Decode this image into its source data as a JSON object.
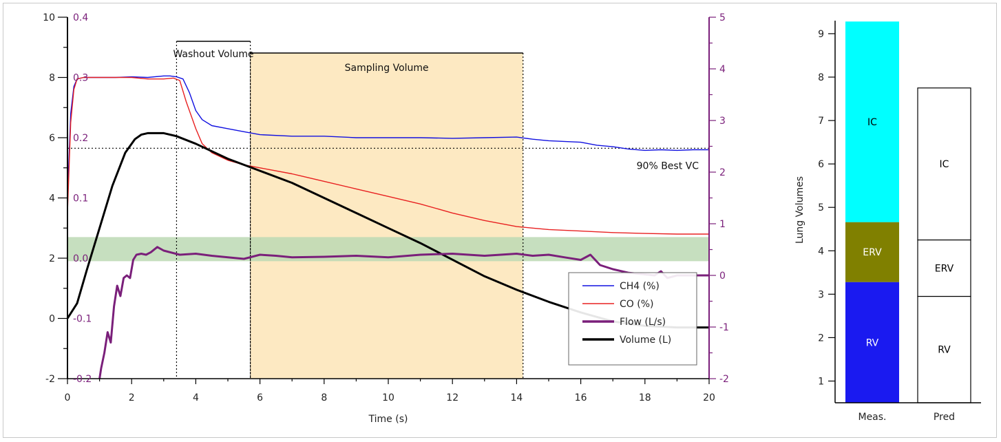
{
  "chart_data": [
    {
      "type": "line",
      "title": "",
      "xlabel": "Time (s)",
      "ylabel": "",
      "xlim": [
        0,
        20
      ],
      "x_ticks": [
        "0",
        "2",
        "4",
        "6",
        "8",
        "10",
        "12",
        "14",
        "16",
        "18",
        "20"
      ],
      "axes": {
        "left_outer": {
          "ylim": [
            -2,
            10
          ],
          "ticks": [
            "-2",
            "0",
            "2",
            "4",
            "6",
            "8",
            "10"
          ],
          "color": "#222222"
        },
        "left_inner": {
          "ylim": [
            -0.2,
            0.4
          ],
          "ticks": [
            "-0.2",
            "-0.1",
            "0.0",
            "0.1",
            "0.2",
            "0.3",
            "0.4"
          ],
          "color": "#7a1f7a"
        },
        "right": {
          "ylim": [
            -2,
            5
          ],
          "ticks": [
            "-2",
            "-1",
            "0",
            "1",
            "2",
            "3",
            "4",
            "5"
          ],
          "color": "#7a1f7a"
        }
      },
      "annotations": {
        "washout": {
          "label": "Washout Volume",
          "x_start": 3.4,
          "x_end": 5.7
        },
        "sampling": {
          "label": "Sampling Volume",
          "x_start": 5.7,
          "x_end": 14.2,
          "fill": "#fde9c2"
        },
        "best_vc": {
          "label": "90% Best VC",
          "y": 5.65
        },
        "green_band": {
          "y_start": 1.9,
          "y_end": 2.7,
          "fill": "#bcd9b4"
        }
      },
      "series": [
        {
          "name": "CH4 (%)",
          "color": "#1010e0",
          "axis": "left_outer",
          "x": [
            0,
            0.1,
            0.2,
            0.3,
            0.5,
            1,
            1.5,
            2,
            2.5,
            3,
            3.2,
            3.4,
            3.6,
            3.8,
            4,
            4.2,
            4.5,
            5,
            5.5,
            6,
            7,
            8,
            9,
            10,
            11,
            12,
            13,
            14,
            14.5,
            15,
            16,
            16.5,
            17,
            17.5,
            18,
            18.5,
            19,
            19.5,
            20
          ],
          "y": [
            4.0,
            6.8,
            7.7,
            7.95,
            8.0,
            8.0,
            8.0,
            8.02,
            8.0,
            8.05,
            8.05,
            8.02,
            7.95,
            7.5,
            6.9,
            6.6,
            6.4,
            6.3,
            6.2,
            6.1,
            6.05,
            6.05,
            6.0,
            6.0,
            6.0,
            5.98,
            6.0,
            6.02,
            5.95,
            5.9,
            5.85,
            5.75,
            5.7,
            5.62,
            5.58,
            5.6,
            5.58,
            5.6,
            5.6
          ]
        },
        {
          "name": "CO (%)",
          "color": "#e82020",
          "axis": "left_outer",
          "x": [
            0,
            0.1,
            0.2,
            0.3,
            0.5,
            1,
            1.5,
            2,
            2.5,
            3,
            3.3,
            3.5,
            3.7,
            4,
            4.2,
            4.5,
            5,
            5.5,
            6,
            7,
            8,
            9,
            10,
            11,
            12,
            13,
            14,
            14.5,
            15,
            16,
            17,
            18,
            19,
            20
          ],
          "y": [
            3.5,
            6.5,
            7.6,
            7.95,
            8.0,
            8.0,
            8.0,
            8.0,
            7.95,
            7.95,
            7.98,
            7.9,
            7.2,
            6.3,
            5.8,
            5.5,
            5.25,
            5.1,
            5.0,
            4.8,
            4.55,
            4.3,
            4.05,
            3.8,
            3.5,
            3.25,
            3.05,
            3.0,
            2.95,
            2.9,
            2.85,
            2.82,
            2.8,
            2.8
          ]
        },
        {
          "name": "Flow (L/s)",
          "color": "#7a1f7a",
          "axis": "right",
          "x": [
            1.0,
            1.05,
            1.15,
            1.25,
            1.35,
            1.45,
            1.55,
            1.65,
            1.75,
            1.85,
            1.95,
            2.05,
            2.15,
            2.3,
            2.45,
            2.6,
            2.8,
            3,
            3.5,
            4,
            4.5,
            5,
            5.5,
            6,
            6.5,
            7,
            8,
            9,
            10,
            11,
            12,
            13,
            14,
            14.5,
            15,
            15.5,
            16,
            16.3,
            16.6,
            17,
            17.5,
            18,
            18.3,
            18.5,
            18.7,
            19,
            19.5,
            20
          ],
          "y": [
            -2.0,
            -1.8,
            -1.5,
            -1.1,
            -1.3,
            -0.6,
            -0.2,
            -0.4,
            -0.05,
            0.0,
            -0.05,
            0.3,
            0.4,
            0.42,
            0.4,
            0.45,
            0.55,
            0.48,
            0.4,
            0.42,
            0.38,
            0.35,
            0.32,
            0.4,
            0.38,
            0.35,
            0.36,
            0.38,
            0.35,
            0.4,
            0.42,
            0.38,
            0.42,
            0.38,
            0.4,
            0.35,
            0.3,
            0.4,
            0.2,
            0.12,
            0.05,
            0.02,
            0.0,
            0.08,
            -0.05,
            0.0,
            0.0,
            0.0
          ]
        },
        {
          "name": "Volume (L)",
          "color": "#000000",
          "axis": "left_outer",
          "x": [
            0,
            0.3,
            0.6,
            1,
            1.4,
            1.8,
            2.1,
            2.3,
            2.5,
            3,
            3.4,
            4,
            5,
            6,
            7,
            8,
            9,
            10,
            11,
            12,
            13,
            14,
            15,
            16,
            17,
            18,
            19,
            20
          ],
          "y": [
            0.0,
            0.5,
            1.6,
            3.0,
            4.4,
            5.5,
            5.95,
            6.1,
            6.15,
            6.15,
            6.05,
            5.8,
            5.3,
            4.9,
            4.5,
            4.0,
            3.5,
            3.0,
            2.5,
            1.95,
            1.4,
            0.95,
            0.55,
            0.2,
            -0.1,
            -0.25,
            -0.3,
            -0.3
          ]
        }
      ]
    },
    {
      "type": "bar",
      "title": "",
      "ylabel": "Lung Volumes",
      "categories": [
        "Meas.",
        "Pred"
      ],
      "ylim": [
        0.5,
        9.3
      ],
      "y_ticks": [
        "1",
        "2",
        "3",
        "4",
        "5",
        "6",
        "7",
        "8",
        "9"
      ],
      "stacks": [
        {
          "category": "Meas.",
          "segments": [
            {
              "name": "RV",
              "value": 2.78,
              "color": "#1a1af0"
            },
            {
              "name": "ERV",
              "value": 1.38,
              "color": "#808000"
            },
            {
              "name": "IC",
              "value": 4.62,
              "color": "#00ffff"
            }
          ]
        },
        {
          "category": "Pred",
          "segments": [
            {
              "name": "RV",
              "value": 2.45,
              "color": "#ffffff"
            },
            {
              "name": "ERV",
              "value": 1.3,
              "color": "#ffffff"
            },
            {
              "name": "IC",
              "value": 3.5,
              "color": "#ffffff"
            }
          ]
        }
      ]
    }
  ]
}
